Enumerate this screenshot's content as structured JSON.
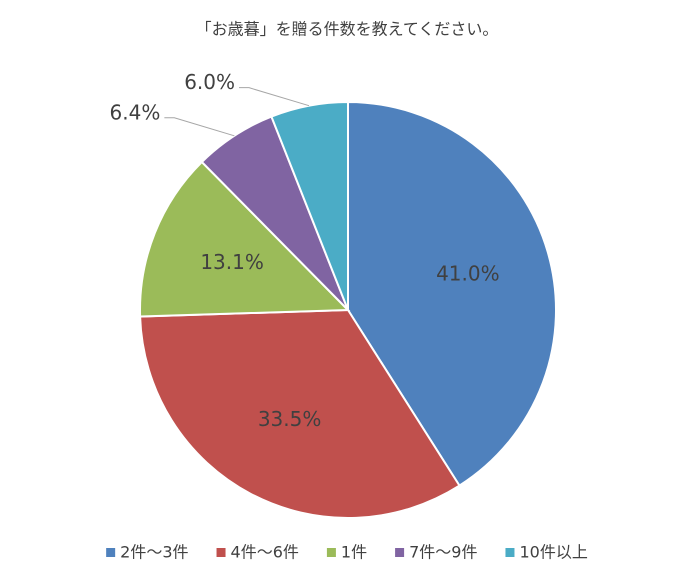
{
  "chart_data": {
    "type": "pie",
    "title": "「お歳暮」を贈る件数を教えてください。",
    "categories": [
      "2件～3件",
      "4件～6件",
      "1件",
      "7件～9件",
      "10件以上"
    ],
    "values": [
      41.0,
      33.5,
      13.1,
      6.4,
      6.0
    ],
    "value_labels": [
      "41.0%",
      "33.5%",
      "13.1%",
      "6.4%",
      "6.0%"
    ],
    "colors": [
      "#4f81bd",
      "#c0504d",
      "#9bbb59",
      "#8064a2",
      "#4bacc6"
    ],
    "legend": "bottom"
  }
}
